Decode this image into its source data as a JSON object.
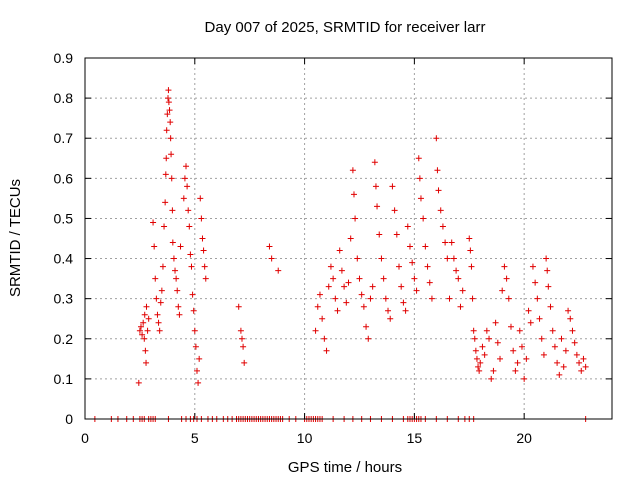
{
  "chart_data": {
    "type": "scatter",
    "title": "Day 007 of 2025, SRMTID for receiver larr",
    "xlabel": "GPS time / hours",
    "ylabel": "SRMTID / TECUs",
    "xlim": [
      0,
      24
    ],
    "ylim": [
      0,
      0.9
    ],
    "xticks": [
      0,
      5,
      10,
      15,
      20
    ],
    "xtick_labels": [
      "0",
      "5",
      "10",
      "15",
      "20"
    ],
    "yticks": [
      0,
      0.1,
      0.2,
      0.3,
      0.4,
      0.5,
      0.6,
      0.7,
      0.8,
      0.9
    ],
    "ytick_labels": [
      "0",
      "0.1",
      "0.2",
      "0.3",
      "0.4",
      "0.5",
      "0.6",
      "0.7",
      "0.8",
      "0.9"
    ],
    "grid": true,
    "marker": "plus",
    "marker_color": "#e00000",
    "series": [
      {
        "name": "SRMTID",
        "points": [
          [
            0.45,
            0
          ],
          [
            1.2,
            0
          ],
          [
            1.5,
            0
          ],
          [
            1.9,
            0
          ],
          [
            2.2,
            0
          ],
          [
            2.5,
            0
          ],
          [
            2.6,
            0
          ],
          [
            2.7,
            0
          ],
          [
            2.9,
            0
          ],
          [
            3.0,
            0
          ],
          [
            3.1,
            0
          ],
          [
            3.2,
            0
          ],
          [
            3.8,
            0
          ],
          [
            4.4,
            0
          ],
          [
            4.6,
            0
          ],
          [
            4.8,
            0
          ],
          [
            4.95,
            0
          ],
          [
            5.1,
            0
          ],
          [
            5.3,
            0
          ],
          [
            5.6,
            0
          ],
          [
            5.8,
            0
          ],
          [
            6.0,
            0
          ],
          [
            6.3,
            0
          ],
          [
            6.5,
            0
          ],
          [
            6.7,
            0
          ],
          [
            6.9,
            0
          ],
          [
            7.0,
            0
          ],
          [
            7.1,
            0
          ],
          [
            7.2,
            0
          ],
          [
            7.3,
            0
          ],
          [
            7.4,
            0
          ],
          [
            7.5,
            0
          ],
          [
            7.6,
            0
          ],
          [
            7.7,
            0
          ],
          [
            7.8,
            0
          ],
          [
            7.9,
            0
          ],
          [
            8.0,
            0
          ],
          [
            8.1,
            0
          ],
          [
            8.2,
            0
          ],
          [
            8.3,
            0
          ],
          [
            8.4,
            0
          ],
          [
            8.5,
            0
          ],
          [
            8.6,
            0
          ],
          [
            8.7,
            0
          ],
          [
            8.8,
            0
          ],
          [
            8.9,
            0
          ],
          [
            9.0,
            0
          ],
          [
            9.3,
            0
          ],
          [
            9.6,
            0
          ],
          [
            10.0,
            0
          ],
          [
            10.1,
            0
          ],
          [
            10.2,
            0
          ],
          [
            10.3,
            0
          ],
          [
            10.4,
            0
          ],
          [
            10.5,
            0
          ],
          [
            10.6,
            0
          ],
          [
            10.7,
            0
          ],
          [
            10.8,
            0
          ],
          [
            11.3,
            0
          ],
          [
            11.8,
            0
          ],
          [
            12.2,
            0
          ],
          [
            12.6,
            0
          ],
          [
            13.0,
            0
          ],
          [
            13.5,
            0
          ],
          [
            14.0,
            0
          ],
          [
            14.5,
            0
          ],
          [
            14.7,
            0
          ],
          [
            14.8,
            0
          ],
          [
            14.9,
            0
          ],
          [
            15.0,
            0
          ],
          [
            15.1,
            0
          ],
          [
            15.2,
            0
          ],
          [
            15.3,
            0
          ],
          [
            15.5,
            0
          ],
          [
            16.0,
            0
          ],
          [
            16.5,
            0
          ],
          [
            17.0,
            0
          ],
          [
            17.3,
            0
          ],
          [
            17.5,
            0
          ],
          [
            17.7,
            0
          ],
          [
            22.8,
            0
          ],
          [
            2.45,
            0.09
          ],
          [
            2.5,
            0.22
          ],
          [
            2.55,
            0.23
          ],
          [
            2.6,
            0.21
          ],
          [
            2.65,
            0.24
          ],
          [
            2.7,
            0.2
          ],
          [
            2.72,
            0.26
          ],
          [
            2.75,
            0.17
          ],
          [
            2.78,
            0.14
          ],
          [
            2.8,
            0.28
          ],
          [
            2.85,
            0.22
          ],
          [
            2.9,
            0.25
          ],
          [
            3.1,
            0.49
          ],
          [
            3.15,
            0.43
          ],
          [
            3.2,
            0.35
          ],
          [
            3.25,
            0.3
          ],
          [
            3.3,
            0.26
          ],
          [
            3.35,
            0.24
          ],
          [
            3.4,
            0.22
          ],
          [
            3.45,
            0.29
          ],
          [
            3.5,
            0.32
          ],
          [
            3.55,
            0.38
          ],
          [
            3.6,
            0.48
          ],
          [
            3.65,
            0.54
          ],
          [
            3.68,
            0.61
          ],
          [
            3.7,
            0.65
          ],
          [
            3.72,
            0.72
          ],
          [
            3.75,
            0.76
          ],
          [
            3.78,
            0.8
          ],
          [
            3.8,
            0.82
          ],
          [
            3.82,
            0.79
          ],
          [
            3.85,
            0.77
          ],
          [
            3.88,
            0.74
          ],
          [
            3.9,
            0.7
          ],
          [
            3.92,
            0.66
          ],
          [
            3.95,
            0.6
          ],
          [
            3.98,
            0.52
          ],
          [
            4.0,
            0.44
          ],
          [
            4.05,
            0.4
          ],
          [
            4.1,
            0.37
          ],
          [
            4.15,
            0.35
          ],
          [
            4.2,
            0.32
          ],
          [
            4.25,
            0.28
          ],
          [
            4.3,
            0.26
          ],
          [
            4.35,
            0.43
          ],
          [
            4.5,
            0.55
          ],
          [
            4.55,
            0.6
          ],
          [
            4.6,
            0.63
          ],
          [
            4.65,
            0.58
          ],
          [
            4.7,
            0.52
          ],
          [
            4.75,
            0.48
          ],
          [
            4.8,
            0.41
          ],
          [
            4.85,
            0.38
          ],
          [
            4.9,
            0.31
          ],
          [
            4.95,
            0.27
          ],
          [
            5.0,
            0.22
          ],
          [
            5.05,
            0.18
          ],
          [
            5.1,
            0.12
          ],
          [
            5.15,
            0.09
          ],
          [
            5.2,
            0.15
          ],
          [
            5.25,
            0.55
          ],
          [
            5.3,
            0.5
          ],
          [
            5.35,
            0.45
          ],
          [
            5.4,
            0.42
          ],
          [
            5.45,
            0.38
          ],
          [
            5.5,
            0.35
          ],
          [
            7.0,
            0.28
          ],
          [
            7.1,
            0.22
          ],
          [
            7.15,
            0.2
          ],
          [
            7.2,
            0.18
          ],
          [
            7.25,
            0.14
          ],
          [
            8.4,
            0.43
          ],
          [
            8.5,
            0.4
          ],
          [
            8.8,
            0.37
          ],
          [
            10.5,
            0.22
          ],
          [
            10.6,
            0.28
          ],
          [
            10.7,
            0.31
          ],
          [
            10.8,
            0.25
          ],
          [
            10.9,
            0.2
          ],
          [
            11.0,
            0.17
          ],
          [
            11.1,
            0.33
          ],
          [
            11.2,
            0.38
          ],
          [
            11.3,
            0.35
          ],
          [
            11.4,
            0.3
          ],
          [
            11.5,
            0.27
          ],
          [
            11.6,
            0.42
          ],
          [
            11.7,
            0.37
          ],
          [
            11.8,
            0.33
          ],
          [
            11.9,
            0.29
          ],
          [
            12.0,
            0.34
          ],
          [
            12.1,
            0.45
          ],
          [
            12.2,
            0.62
          ],
          [
            12.25,
            0.56
          ],
          [
            12.3,
            0.5
          ],
          [
            12.4,
            0.4
          ],
          [
            12.5,
            0.35
          ],
          [
            12.6,
            0.31
          ],
          [
            12.7,
            0.28
          ],
          [
            12.8,
            0.23
          ],
          [
            12.9,
            0.2
          ],
          [
            13.0,
            0.3
          ],
          [
            13.1,
            0.33
          ],
          [
            13.2,
            0.64
          ],
          [
            13.25,
            0.58
          ],
          [
            13.3,
            0.53
          ],
          [
            13.4,
            0.46
          ],
          [
            13.5,
            0.4
          ],
          [
            13.6,
            0.35
          ],
          [
            13.7,
            0.3
          ],
          [
            13.8,
            0.27
          ],
          [
            13.9,
            0.25
          ],
          [
            14.0,
            0.58
          ],
          [
            14.1,
            0.52
          ],
          [
            14.2,
            0.46
          ],
          [
            14.3,
            0.38
          ],
          [
            14.4,
            0.33
          ],
          [
            14.5,
            0.29
          ],
          [
            14.6,
            0.27
          ],
          [
            14.7,
            0.48
          ],
          [
            14.8,
            0.43
          ],
          [
            14.9,
            0.39
          ],
          [
            15.0,
            0.35
          ],
          [
            15.1,
            0.32
          ],
          [
            15.2,
            0.65
          ],
          [
            15.25,
            0.6
          ],
          [
            15.3,
            0.55
          ],
          [
            15.4,
            0.5
          ],
          [
            15.5,
            0.43
          ],
          [
            15.6,
            0.38
          ],
          [
            15.7,
            0.34
          ],
          [
            15.8,
            0.3
          ],
          [
            16.0,
            0.7
          ],
          [
            16.05,
            0.62
          ],
          [
            16.1,
            0.57
          ],
          [
            16.2,
            0.52
          ],
          [
            16.3,
            0.48
          ],
          [
            16.4,
            0.44
          ],
          [
            16.5,
            0.4
          ],
          [
            16.6,
            0.3
          ],
          [
            16.7,
            0.44
          ],
          [
            16.8,
            0.4
          ],
          [
            16.9,
            0.37
          ],
          [
            17.0,
            0.35
          ],
          [
            17.1,
            0.28
          ],
          [
            17.2,
            0.32
          ],
          [
            17.5,
            0.45
          ],
          [
            17.55,
            0.42
          ],
          [
            17.6,
            0.38
          ],
          [
            17.65,
            0.3
          ],
          [
            17.7,
            0.22
          ],
          [
            17.75,
            0.2
          ],
          [
            17.8,
            0.17
          ],
          [
            17.85,
            0.15
          ],
          [
            17.9,
            0.13
          ],
          [
            17.95,
            0.12
          ],
          [
            18.0,
            0.14
          ],
          [
            18.1,
            0.18
          ],
          [
            18.2,
            0.16
          ],
          [
            18.3,
            0.22
          ],
          [
            18.4,
            0.2
          ],
          [
            18.5,
            0.1
          ],
          [
            18.6,
            0.12
          ],
          [
            18.7,
            0.24
          ],
          [
            18.8,
            0.19
          ],
          [
            18.9,
            0.15
          ],
          [
            19.0,
            0.32
          ],
          [
            19.1,
            0.38
          ],
          [
            19.2,
            0.35
          ],
          [
            19.3,
            0.3
          ],
          [
            19.4,
            0.23
          ],
          [
            19.5,
            0.17
          ],
          [
            19.6,
            0.12
          ],
          [
            19.7,
            0.14
          ],
          [
            19.8,
            0.22
          ],
          [
            19.9,
            0.18
          ],
          [
            20.0,
            0.1
          ],
          [
            20.1,
            0.15
          ],
          [
            20.2,
            0.27
          ],
          [
            20.3,
            0.24
          ],
          [
            20.4,
            0.38
          ],
          [
            20.5,
            0.34
          ],
          [
            20.6,
            0.3
          ],
          [
            20.7,
            0.25
          ],
          [
            20.8,
            0.2
          ],
          [
            20.9,
            0.16
          ],
          [
            21.0,
            0.4
          ],
          [
            21.05,
            0.37
          ],
          [
            21.1,
            0.33
          ],
          [
            21.2,
            0.28
          ],
          [
            21.3,
            0.22
          ],
          [
            21.4,
            0.18
          ],
          [
            21.5,
            0.14
          ],
          [
            21.6,
            0.11
          ],
          [
            21.7,
            0.2
          ],
          [
            21.8,
            0.13
          ],
          [
            21.9,
            0.17
          ],
          [
            22.0,
            0.27
          ],
          [
            22.1,
            0.25
          ],
          [
            22.2,
            0.22
          ],
          [
            22.3,
            0.19
          ],
          [
            22.4,
            0.16
          ],
          [
            22.5,
            0.14
          ],
          [
            22.6,
            0.12
          ],
          [
            22.7,
            0.15
          ],
          [
            22.8,
            0.13
          ]
        ]
      }
    ]
  }
}
